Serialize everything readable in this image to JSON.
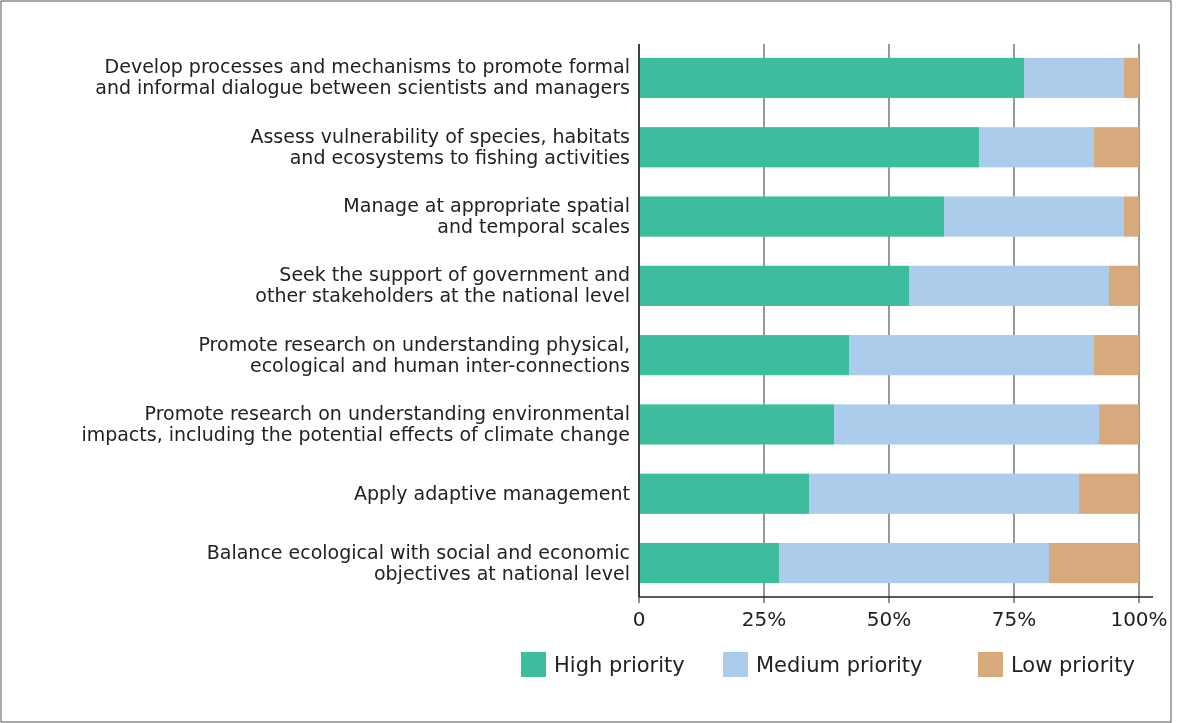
{
  "chart_data": {
    "type": "bar",
    "orientation": "horizontal",
    "stacked": true,
    "categories": [
      "Develop processes and mechanisms to promote formal\nand informal dialogue between scientists and managers",
      "Assess vulnerability of species, habitats\nand ecosystems to fishing activities",
      "Manage at appropriate spatial\nand temporal scales",
      "Seek the support of government and\nother stakeholders at the national level",
      "Promote research on understanding physical,\necological and human inter-connections",
      "Promote research on understanding environmental\nimpacts, including the potential effects of climate change",
      "Apply adaptive management",
      "Balance ecological with social and economic\nobjectives at national level"
    ],
    "series": [
      {
        "name": "High priority",
        "color": "#3dbd9e",
        "values": [
          77,
          68,
          61,
          54,
          42,
          39,
          34,
          28
        ]
      },
      {
        "name": "Medium priority",
        "color": "#abcdeb",
        "values": [
          20,
          23,
          36,
          40,
          49,
          53,
          54,
          54
        ]
      },
      {
        "name": "Low priority",
        "color": "#d6aa7c",
        "values": [
          3,
          9,
          3,
          6,
          9,
          8,
          12,
          18
        ]
      }
    ],
    "xlim": [
      0,
      100
    ],
    "xticks": [
      0,
      {
        "value": 25,
        "label": "25%"
      },
      {
        "value": 50,
        "label": "50%"
      },
      {
        "value": 75,
        "label": "75%"
      },
      {
        "value": 100,
        "label": "100%"
      }
    ],
    "grid": "x",
    "legend": "bottom"
  }
}
